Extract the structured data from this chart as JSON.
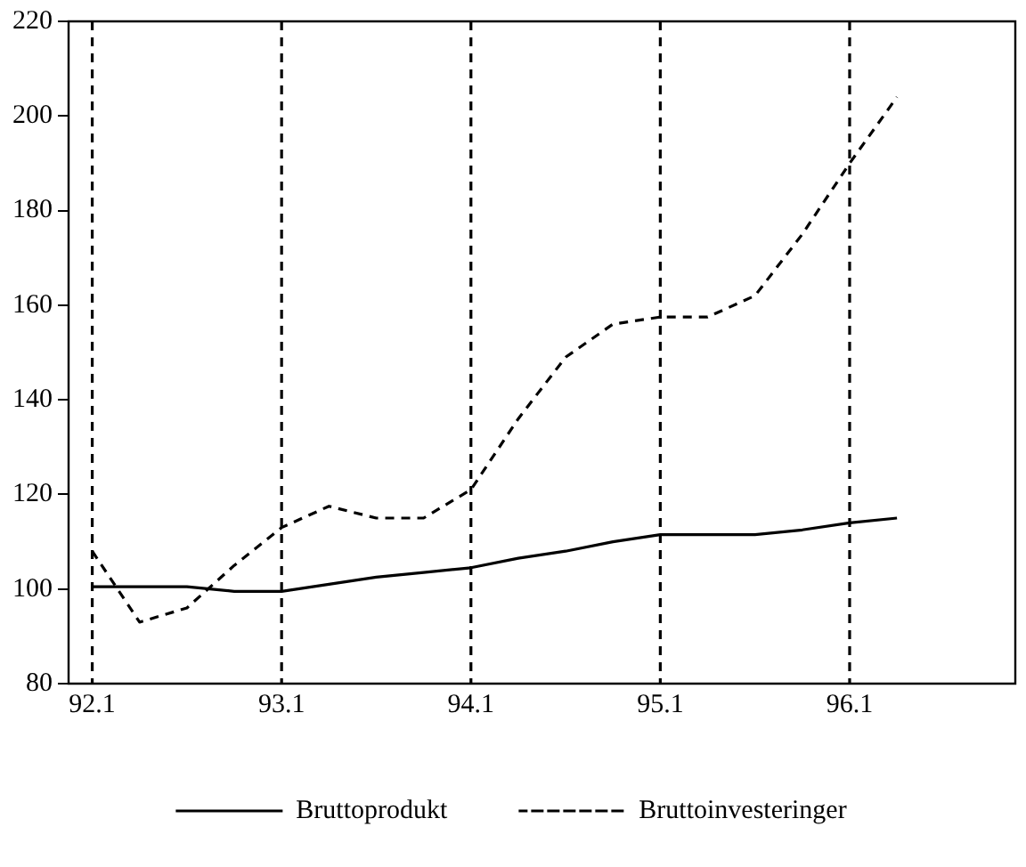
{
  "chart_data": {
    "type": "line",
    "categories": [
      "92.1",
      null,
      null,
      null,
      "93.1",
      null,
      null,
      null,
      "94.1",
      null,
      null,
      null,
      "95.1",
      null,
      null,
      null,
      "96.1",
      null,
      null,
      null
    ],
    "series": [
      {
        "name": "Bruttoprodukt",
        "color": "#000000",
        "line_style": "solid",
        "values": [
          100.5,
          100.5,
          100.5,
          99.5,
          99.5,
          101,
          102.5,
          103.5,
          104.5,
          106.5,
          108,
          110,
          111.5,
          111.5,
          111.5,
          112.5,
          114,
          115,
          null,
          null
        ]
      },
      {
        "name": "Bruttoinvesteringer",
        "color": "#000000",
        "line_style": "dashed",
        "values": [
          108,
          93,
          96,
          105,
          113,
          117.5,
          115,
          115,
          121,
          136,
          149,
          156,
          157.5,
          157.5,
          162,
          175,
          190,
          204,
          null,
          null
        ]
      }
    ],
    "ylim": [
      80,
      220
    ],
    "yticks": [
      80,
      100,
      120,
      140,
      160,
      180,
      200,
      220
    ],
    "ref_lines": [
      {
        "axis": "x",
        "value": "92.1",
        "line_style": "dashed"
      },
      {
        "axis": "x",
        "value": "93.1",
        "line_style": "dashed"
      },
      {
        "axis": "x",
        "value": "94.1",
        "line_style": "dashed"
      },
      {
        "axis": "x",
        "value": "95.1",
        "line_style": "dashed"
      },
      {
        "axis": "x",
        "value": "96.1",
        "line_style": "dashed"
      }
    ],
    "grid": false,
    "legend": "bottom",
    "marker": "none"
  }
}
